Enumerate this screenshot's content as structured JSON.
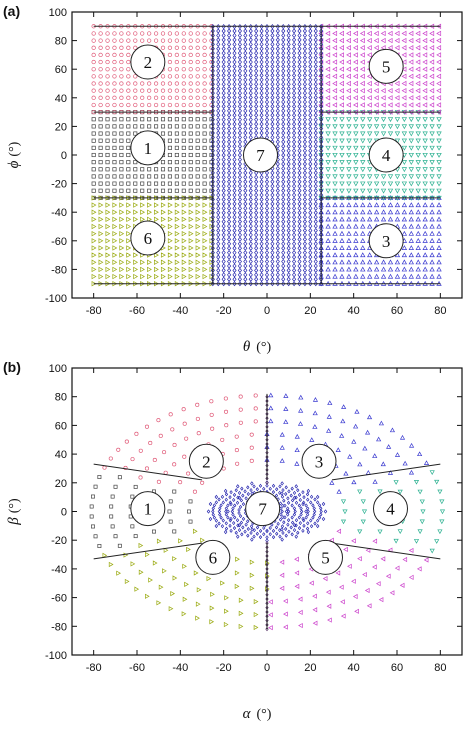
{
  "figure": {
    "panels": [
      {
        "label": "(a)",
        "xvar": "θ",
        "yvar": "ϕ",
        "unit": "(°)"
      },
      {
        "label": "(b)",
        "xvar": "α",
        "yvar": "β",
        "unit": "(°)"
      }
    ]
  },
  "chart_data": [
    {
      "type": "scatter",
      "title": "",
      "panel": "(a)",
      "xlabel": "θ (°)",
      "ylabel": "ϕ (°)",
      "xlim": [
        -90,
        90
      ],
      "ylim": [
        -100,
        100
      ],
      "x_ticks": [
        -80,
        -60,
        -40,
        -20,
        0,
        20,
        40,
        60,
        80
      ],
      "y_ticks": [
        -100,
        -80,
        -60,
        -40,
        -20,
        0,
        20,
        40,
        60,
        80,
        100
      ],
      "grid": false,
      "legend": "none",
      "regions": [
        {
          "name": "1",
          "marker": "square",
          "color": "#444444",
          "theta": [
            -80,
            -25
          ],
          "phi": [
            -30,
            30
          ],
          "label_at": [
            -55,
            5
          ]
        },
        {
          "name": "2",
          "marker": "circle",
          "color": "#e05a78",
          "theta": [
            -80,
            -25
          ],
          "phi": [
            30,
            90
          ],
          "label_at": [
            -55,
            65
          ]
        },
        {
          "name": "3",
          "marker": "triangle-up",
          "color": "#3a3ad0",
          "theta": [
            25,
            80
          ],
          "phi": [
            -90,
            -30
          ],
          "label_at": [
            55,
            -60
          ]
        },
        {
          "name": "4",
          "marker": "triangle-down",
          "color": "#2ab090",
          "theta": [
            25,
            80
          ],
          "phi": [
            -30,
            30
          ],
          "label_at": [
            55,
            0
          ]
        },
        {
          "name": "5",
          "marker": "triangle-left",
          "color": "#cc44cc",
          "theta": [
            25,
            80
          ],
          "phi": [
            30,
            90
          ],
          "label_at": [
            55,
            62
          ]
        },
        {
          "name": "6",
          "marker": "triangle-right",
          "color": "#9aaa10",
          "theta": [
            -80,
            -25
          ],
          "phi": [
            -90,
            -30
          ],
          "label_at": [
            -55,
            -58
          ]
        },
        {
          "name": "7",
          "marker": "diamond",
          "color": "#2a2ab0",
          "theta": [
            -25,
            25
          ],
          "phi": [
            -90,
            90
          ],
          "label_at": [
            -3,
            0
          ]
        }
      ],
      "boundaries": [
        {
          "from": [
            -80,
            30
          ],
          "to": [
            -25,
            30
          ]
        },
        {
          "from": [
            -80,
            -30
          ],
          "to": [
            -25,
            -30
          ]
        },
        {
          "from": [
            25,
            30
          ],
          "to": [
            80,
            30
          ]
        },
        {
          "from": [
            25,
            -30
          ],
          "to": [
            80,
            -30
          ]
        },
        {
          "from": [
            -80,
            90
          ],
          "to": [
            80,
            90
          ]
        },
        {
          "from": [
            -80,
            -90
          ],
          "to": [
            80,
            -90
          ]
        },
        {
          "from": [
            -25,
            -90
          ],
          "to": [
            -25,
            90
          ]
        },
        {
          "from": [
            25,
            -90
          ],
          "to": [
            25,
            90
          ]
        }
      ]
    },
    {
      "type": "scatter",
      "title": "",
      "panel": "(b)",
      "xlabel": "α (°)",
      "ylabel": "β (°)",
      "xlim": [
        -90,
        90
      ],
      "ylim": [
        -100,
        100
      ],
      "x_ticks": [
        -80,
        -60,
        -40,
        -20,
        0,
        20,
        40,
        60,
        80
      ],
      "y_ticks": [
        -100,
        -80,
        -60,
        -40,
        -20,
        0,
        20,
        40,
        60,
        80,
        100
      ],
      "grid": false,
      "legend": "none",
      "regions": [
        {
          "name": "1",
          "marker": "square",
          "color": "#444444",
          "label_at": [
            -55,
            2
          ]
        },
        {
          "name": "2",
          "marker": "circle",
          "color": "#e05a78",
          "label_at": [
            -28,
            35
          ]
        },
        {
          "name": "3",
          "marker": "triangle-up",
          "color": "#3a3ad0",
          "label_at": [
            24,
            35
          ]
        },
        {
          "name": "4",
          "marker": "triangle-down",
          "color": "#2ab090",
          "label_at": [
            57,
            2
          ]
        },
        {
          "name": "5",
          "marker": "triangle-left",
          "color": "#cc44cc",
          "label_at": [
            27,
            -32
          ]
        },
        {
          "name": "6",
          "marker": "triangle-right",
          "color": "#9aaa10",
          "label_at": [
            -25,
            -32
          ]
        },
        {
          "name": "7",
          "marker": "diamond",
          "color": "#2a2ab0",
          "label_at": [
            -2,
            2
          ]
        }
      ],
      "boundaries": [
        {
          "from": [
            -80,
            33
          ],
          "to": [
            -30,
            22
          ]
        },
        {
          "from": [
            -80,
            -33
          ],
          "to": [
            -30,
            -22
          ]
        },
        {
          "from": [
            30,
            22
          ],
          "to": [
            80,
            33
          ]
        },
        {
          "from": [
            30,
            -22
          ],
          "to": [
            80,
            -33
          ]
        },
        {
          "from": [
            0,
            22
          ],
          "to": [
            0,
            82
          ]
        },
        {
          "from": [
            0,
            -22
          ],
          "to": [
            0,
            -82
          ]
        }
      ]
    }
  ]
}
